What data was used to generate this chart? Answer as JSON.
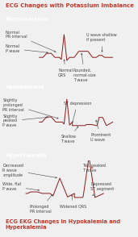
{
  "title": "ECG Changes with Potassium Imbalance",
  "footer": "ECG EKG Changes in Hypokalemia and\nHyperkalemia",
  "title_color": "#c0392b",
  "footer_color": "#c0392b",
  "section_header_bg": "#d9736a",
  "section_bg": "#f7dbd8",
  "outer_bg": "#f0f0f0",
  "sections": [
    "Normokalemia",
    "Hypokalemia",
    "Hyperkalemia"
  ],
  "ecg_color": "#8b1a1a",
  "annotation_color": "#444444",
  "annotation_fontsize": 3.5
}
